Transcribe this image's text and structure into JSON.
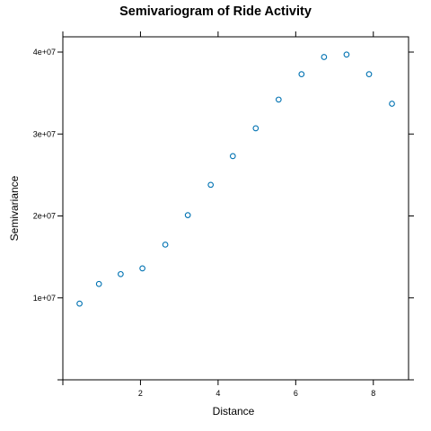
{
  "chart_data": {
    "type": "scatter",
    "title": "Semivariogram of Ride Activity",
    "xlabel": "Distance",
    "ylabel": "Semivariance",
    "xlim": [
      0,
      9
    ],
    "ylim": [
      0,
      40000000
    ],
    "x_ticks": [
      {
        "value": 0,
        "label": ""
      },
      {
        "value": 2,
        "label": "2"
      },
      {
        "value": 4,
        "label": "4"
      },
      {
        "value": 6,
        "label": "6"
      },
      {
        "value": 8,
        "label": "8"
      }
    ],
    "y_ticks": [
      {
        "value": 0,
        "label": ""
      },
      {
        "value": 10000000,
        "label": "1e+07"
      },
      {
        "value": 20000000,
        "label": "2e+07"
      },
      {
        "value": 30000000,
        "label": "3e+07"
      },
      {
        "value": 40000000,
        "label": "4e+07"
      }
    ],
    "grid": false,
    "point_color": "#0072B2",
    "x": [
      0.43,
      0.93,
      1.49,
      2.05,
      2.64,
      3.22,
      3.81,
      4.38,
      4.97,
      5.56,
      6.15,
      6.73,
      7.31,
      7.89,
      8.48
    ],
    "y": [
      9300000,
      11700000,
      12900000,
      13600000,
      16500000,
      20100000,
      23800000,
      27300000,
      30700000,
      34200000,
      37300000,
      39400000,
      39700000,
      37300000,
      33700000
    ]
  }
}
